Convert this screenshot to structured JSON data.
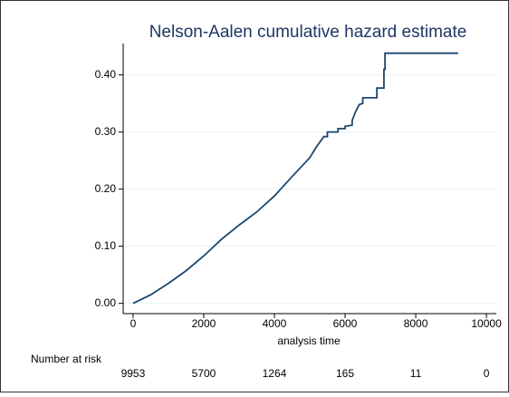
{
  "chart_data": {
    "type": "line",
    "title": "Nelson-Aalen cumulative hazard estimate",
    "x_label": "analysis time",
    "x": [
      0,
      500,
      1000,
      1500,
      2000,
      2500,
      3000,
      3500,
      4000,
      4500,
      5000,
      5200,
      5400,
      5500,
      5500,
      5800,
      5800,
      6000,
      6000,
      6200,
      6200,
      6300,
      6400,
      6500,
      6500,
      6900,
      6900,
      7100,
      7100,
      7130,
      7130,
      9200
    ],
    "series": [
      {
        "color": "#1a476f",
        "values": [
          0,
          0.015,
          0.035,
          0.057,
          0.083,
          0.112,
          0.137,
          0.16,
          0.188,
          0.222,
          0.255,
          0.275,
          0.292,
          0.292,
          0.3,
          0.3,
          0.306,
          0.306,
          0.31,
          0.312,
          0.32,
          0.336,
          0.348,
          0.35,
          0.36,
          0.36,
          0.377,
          0.377,
          0.41,
          0.41,
          0.438,
          0.438
        ]
      }
    ],
    "xlim": [
      -280,
      10280
    ],
    "ylim": [
      -0.018,
      0.455
    ],
    "xticks": [
      0,
      2000,
      4000,
      6000,
      8000,
      10000
    ],
    "yticks": [
      {
        "value": 0,
        "label": "0.00"
      },
      {
        "value": 0.1,
        "label": "0.10"
      },
      {
        "value": 0.2,
        "label": "0.20"
      },
      {
        "value": 0.3,
        "label": "0.30"
      },
      {
        "value": 0.4,
        "label": "0.40"
      }
    ],
    "grid": true,
    "risk_table": {
      "label": "Number at risk",
      "values": [
        9953,
        5700,
        1264,
        165,
        11,
        0
      ]
    }
  }
}
